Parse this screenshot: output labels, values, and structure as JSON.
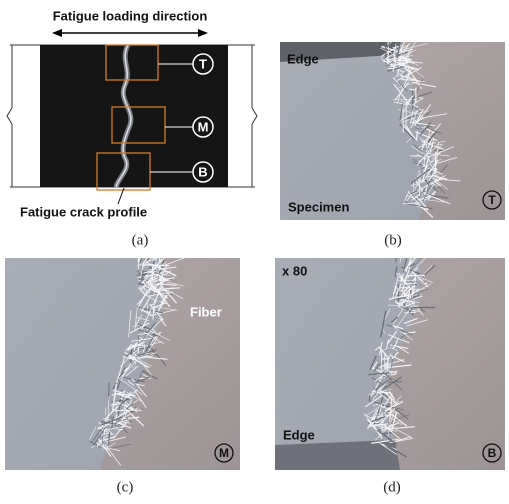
{
  "panel_a": {
    "direction_label": "Fatigue loading direction",
    "markers": [
      "T",
      "M",
      "B"
    ],
    "crack_label": "Fatigue crack profile",
    "caption": "(a)"
  },
  "panel_b": {
    "edge_label": "Edge",
    "specimen_label": "Specimen",
    "marker": "T",
    "caption": "(b)"
  },
  "panel_c": {
    "fiber_label": "Fiber",
    "marker": "M",
    "caption": "(c)"
  },
  "panel_d": {
    "magnification": "x 80",
    "edge_label": "Edge",
    "marker": "B",
    "caption": "(d)"
  }
}
